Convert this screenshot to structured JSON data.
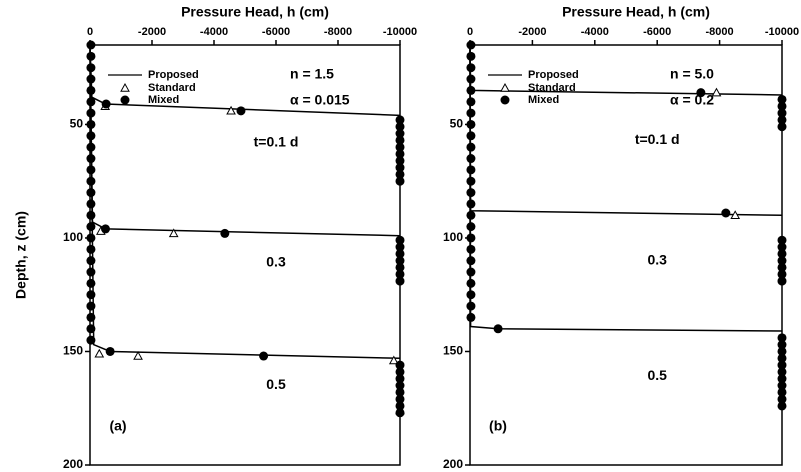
{
  "chart_data": [
    {
      "type": "line",
      "title": "Pressure Head, h (cm)",
      "ylabel": "Depth, z (cm)",
      "panel_label": "(a)",
      "params": [
        "n = 1.5",
        "α = 0.015"
      ],
      "xlim": [
        0,
        -10000
      ],
      "xticks": [
        0,
        -2000,
        -4000,
        -6000,
        -8000,
        -10000
      ],
      "ylim": [
        15,
        200
      ],
      "yticks": [
        50,
        100,
        150,
        200
      ],
      "y_inverted": true,
      "series": [
        {
          "name": "Proposed",
          "color": "#000000",
          "marker": "line",
          "curves": [
            {
              "label": "t=0.1 d",
              "x": [
                0,
                -60,
                -500,
                -10000
              ],
              "values": [
                15,
                38,
                41,
                46
              ]
            },
            {
              "label": "0.3",
              "x": [
                0,
                -80,
                -500,
                -10000
              ],
              "values": [
                15,
                93,
                96,
                99
              ]
            },
            {
              "label": "0.5",
              "x": [
                0,
                -120,
                -650,
                -10000
              ],
              "values": [
                15,
                147,
                150,
                153
              ]
            }
          ]
        },
        {
          "name": "Standard",
          "color": "#000000",
          "marker": "triangle",
          "x": [
            -490,
            -4550,
            -350,
            -2700,
            -300,
            -1550,
            -9800,
            -10000
          ],
          "values": [
            42,
            44,
            97,
            98,
            151,
            152,
            154,
            176
          ]
        },
        {
          "name": "Mixed",
          "color": "#000000",
          "marker": "circle",
          "x": [
            -30,
            -30,
            -30,
            -30,
            -30,
            -30,
            -30,
            -30,
            -30,
            -30,
            -30,
            -30,
            -30,
            -30,
            -30,
            -30,
            -30,
            -30,
            -30,
            -30,
            -30,
            -30,
            -30,
            -30,
            -30,
            -30,
            -30,
            -520,
            -4870,
            -10000,
            -10000,
            -10000,
            -10000,
            -10000,
            -10000,
            -10000,
            -10000,
            -10000,
            -10000,
            -500,
            -4350,
            -10000,
            -10000,
            -10000,
            -10000,
            -10000,
            -10000,
            -10000,
            -650,
            -5600,
            -10000,
            -10000,
            -10000,
            -10000,
            -10000,
            -10000,
            -10000,
            -10000
          ],
          "values": [
            15,
            20,
            25,
            30,
            35,
            40,
            45,
            50,
            55,
            60,
            65,
            70,
            75,
            80,
            85,
            90,
            95,
            100,
            105,
            110,
            115,
            120,
            125,
            130,
            135,
            140,
            145,
            41,
            44,
            48,
            51,
            54,
            57,
            60,
            63,
            66,
            69,
            72,
            75,
            96,
            98,
            101,
            104,
            107,
            110,
            113,
            116,
            119,
            150,
            152,
            156,
            159,
            162,
            165,
            168,
            171,
            174,
            177
          ]
        }
      ]
    },
    {
      "type": "line",
      "title": "Pressure Head, h (cm)",
      "panel_label": "(b)",
      "params": [
        "n = 5.0",
        "α = 0.2"
      ],
      "xlim": [
        0,
        -10000
      ],
      "xticks": [
        0,
        -2000,
        -4000,
        -6000,
        -8000,
        -10000
      ],
      "ylim": [
        15,
        200
      ],
      "yticks": [
        50,
        100,
        150,
        200
      ],
      "y_inverted": true,
      "series": [
        {
          "name": "Proposed",
          "color": "#000000",
          "marker": "line",
          "curves": [
            {
              "label": "t=0.1 d",
              "x": [
                0,
                -20,
                -10000
              ],
              "values": [
                15,
                35,
                37
              ]
            },
            {
              "label": "0.3",
              "x": [
                0,
                -20,
                -10000
              ],
              "values": [
                15,
                88,
                90
              ]
            },
            {
              "label": "0.5",
              "x": [
                0,
                -20,
                -900,
                -10000
              ],
              "values": [
                15,
                139,
                140,
                141
              ]
            }
          ]
        },
        {
          "name": "Standard",
          "color": "#000000",
          "marker": "triangle",
          "x": [
            -7900,
            -8500
          ],
          "values": [
            36,
            90
          ]
        },
        {
          "name": "Mixed",
          "color": "#000000",
          "marker": "circle",
          "x": [
            -30,
            -30,
            -30,
            -30,
            -30,
            -30,
            -30,
            -30,
            -30,
            -30,
            -30,
            -30,
            -30,
            -30,
            -30,
            -30,
            -30,
            -30,
            -30,
            -30,
            -30,
            -30,
            -30,
            -30,
            -30,
            -7400,
            -10000,
            -10000,
            -10000,
            -10000,
            -10000,
            -8200,
            -10000,
            -10000,
            -10000,
            -10000,
            -10000,
            -10000,
            -10000,
            -900,
            -10000,
            -10000,
            -10000,
            -10000,
            -10000,
            -10000,
            -10000,
            -10000,
            -10000,
            -10000,
            -10000
          ],
          "values": [
            15,
            20,
            25,
            30,
            35,
            40,
            45,
            50,
            55,
            60,
            65,
            70,
            75,
            80,
            85,
            90,
            95,
            100,
            105,
            110,
            115,
            120,
            125,
            130,
            135,
            36,
            39,
            42,
            45,
            48,
            51,
            89,
            101,
            104,
            107,
            110,
            113,
            116,
            119,
            140,
            144,
            147,
            150,
            153,
            156,
            159,
            162,
            165,
            168,
            171,
            174
          ]
        }
      ]
    }
  ]
}
